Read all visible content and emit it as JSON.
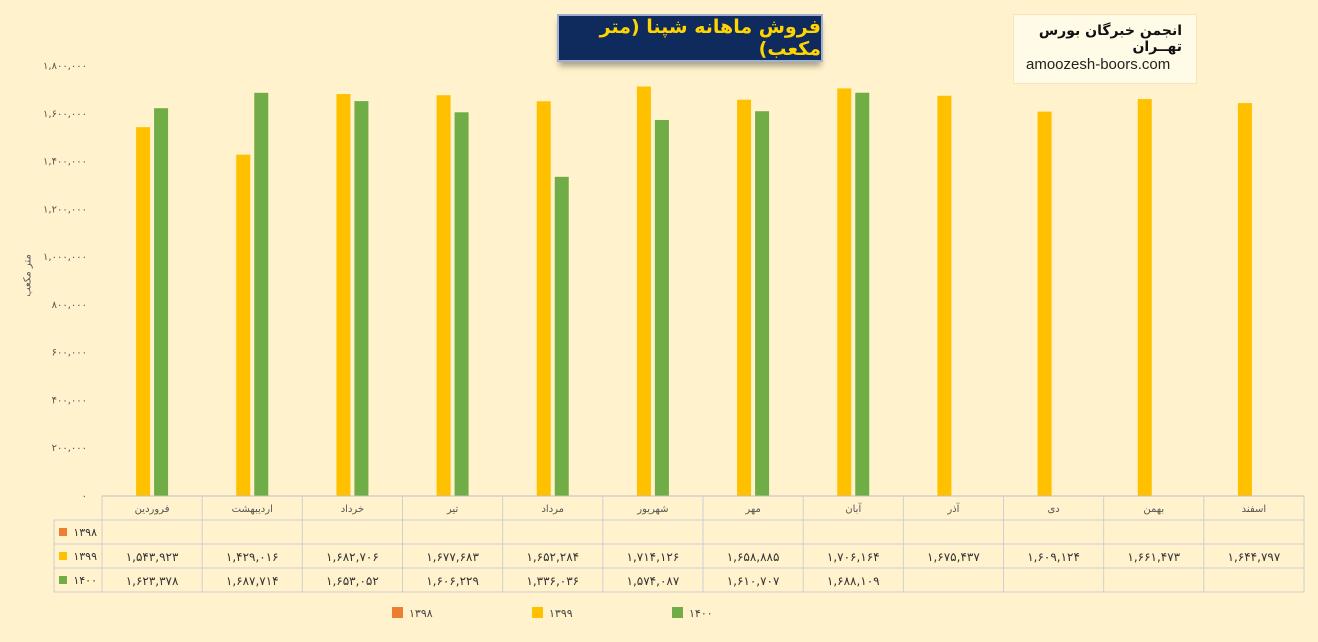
{
  "title": "فروش ماهانه شپنا (متر مکعب)",
  "brand": {
    "name": "انجمن خبرگان بورس تهــران",
    "url": "amoozesh-boors.com"
  },
  "chart_data": {
    "type": "bar",
    "ylabel": "متر مکعب",
    "ylim": [
      0,
      1800000
    ],
    "yticks": [
      0,
      200000,
      400000,
      600000,
      800000,
      1000000,
      1200000,
      1400000,
      1600000,
      1800000
    ],
    "ytick_labels": [
      "۰",
      "۲۰۰,۰۰۰",
      "۴۰۰,۰۰۰",
      "۶۰۰,۰۰۰",
      "۸۰۰,۰۰۰",
      "۱,۰۰۰,۰۰۰",
      "۱,۲۰۰,۰۰۰",
      "۱,۴۰۰,۰۰۰",
      "۱,۶۰۰,۰۰۰",
      "۱,۸۰۰,۰۰۰"
    ],
    "categories": [
      "فروردین",
      "اردیبهشت",
      "خرداد",
      "تیر",
      "مرداد",
      "شهریور",
      "مهر",
      "آبان",
      "آذر",
      "دی",
      "بهمن",
      "اسفند"
    ],
    "series": [
      {
        "name": "۱۳۹۸",
        "color": "#ed7d31",
        "values": [
          null,
          null,
          null,
          null,
          null,
          null,
          null,
          null,
          null,
          null,
          null,
          null
        ],
        "labels": [
          "",
          "",
          "",
          "",
          "",
          "",
          "",
          "",
          "",
          "",
          "",
          ""
        ]
      },
      {
        "name": "۱۳۹۹",
        "color": "#ffc000",
        "values": [
          1543923,
          1429016,
          1682706,
          1677683,
          1652284,
          1714126,
          1658885,
          1706164,
          1675437,
          1609124,
          1661473,
          1644797
        ],
        "labels": [
          "۱,۵۴۳,۹۲۳",
          "۱,۴۲۹,۰۱۶",
          "۱,۶۸۲,۷۰۶",
          "۱,۶۷۷,۶۸۳",
          "۱,۶۵۲,۲۸۴",
          "۱,۷۱۴,۱۲۶",
          "۱,۶۵۸,۸۸۵",
          "۱,۷۰۶,۱۶۴",
          "۱,۶۷۵,۴۳۷",
          "۱,۶۰۹,۱۲۴",
          "۱,۶۶۱,۴۷۳",
          "۱,۶۴۴,۷۹۷"
        ]
      },
      {
        "name": "۱۴۰۰",
        "color": "#70ad47",
        "values": [
          1623378,
          1687714,
          1653052,
          1606229,
          1336036,
          1574087,
          1610707,
          1688109,
          null,
          null,
          null,
          null
        ],
        "labels": [
          "۱,۶۲۳,۳۷۸",
          "۱,۶۸۷,۷۱۴",
          "۱,۶۵۳,۰۵۲",
          "۱,۶۰۶,۲۲۹",
          "۱,۳۳۶,۰۳۶",
          "۱,۵۷۴,۰۸۷",
          "۱,۶۱۰,۷۰۷",
          "۱,۶۸۸,۱۰۹",
          "",
          "",
          "",
          ""
        ]
      }
    ],
    "grid": false,
    "legend": "bottom",
    "data_table": true
  }
}
